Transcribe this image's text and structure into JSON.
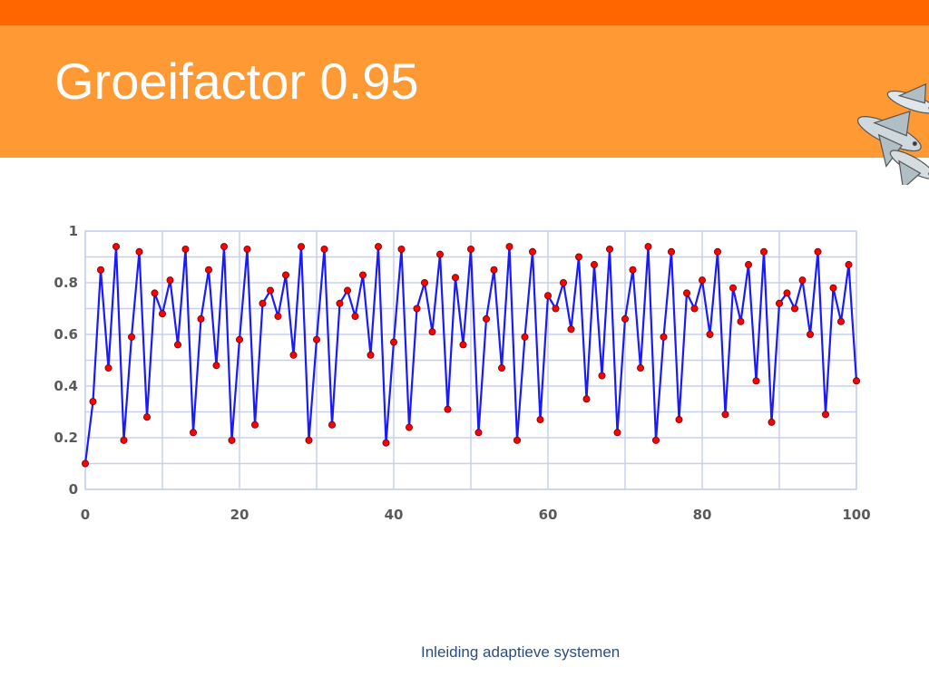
{
  "slide": {
    "title": "Groeifactor 0.95",
    "footer": "Inleiding adaptieve systemen",
    "colors": {
      "top_bar": "#ff6600",
      "header": "#ff9933",
      "title_text": "#ffffff",
      "footer_text": "#2b4c7e"
    },
    "logo_icon": "flying-fish-logo-icon"
  },
  "chart_data": {
    "type": "line",
    "title": "",
    "xlabel": "",
    "ylabel": "",
    "xlim": [
      0,
      100
    ],
    "ylim": [
      0,
      1
    ],
    "xticks": [
      0,
      20,
      40,
      60,
      80,
      100
    ],
    "yticks": [
      0,
      0.2,
      0.4,
      0.6,
      0.8,
      1
    ],
    "ytick_labels": [
      "0",
      "0.2",
      "0.4",
      "0.6",
      "0.8",
      "1"
    ],
    "grid": true,
    "legend": "none",
    "line_color": "#1a1aff",
    "marker_color": "#ff0000",
    "series": [
      {
        "values": [
          0.1,
          0.34,
          0.85,
          0.47,
          0.94,
          0.19,
          0.59,
          0.92,
          0.28,
          0.76,
          0.68,
          0.81,
          0.56,
          0.93,
          0.22,
          0.66,
          0.85,
          0.48,
          0.94,
          0.19,
          0.58,
          0.93,
          0.25,
          0.72,
          0.77,
          0.67,
          0.83,
          0.52,
          0.94,
          0.19,
          0.58,
          0.93,
          0.25,
          0.72,
          0.77,
          0.67,
          0.83,
          0.52,
          0.94,
          0.18,
          0.57,
          0.93,
          0.24,
          0.7,
          0.8,
          0.61,
          0.91,
          0.31,
          0.82,
          0.56,
          0.93,
          0.22,
          0.66,
          0.85,
          0.47,
          0.94,
          0.19,
          0.59,
          0.92,
          0.27,
          0.75,
          0.7,
          0.8,
          0.62,
          0.9,
          0.35,
          0.87,
          0.44,
          0.93,
          0.22,
          0.66,
          0.85,
          0.47,
          0.94,
          0.19,
          0.59,
          0.92,
          0.27,
          0.76,
          0.7,
          0.81,
          0.6,
          0.92,
          0.29,
          0.78,
          0.65,
          0.87,
          0.42,
          0.92,
          0.26,
          0.72,
          0.76,
          0.7,
          0.81,
          0.6,
          0.92,
          0.29,
          0.78,
          0.65,
          0.87,
          0.42
        ]
      }
    ]
  }
}
